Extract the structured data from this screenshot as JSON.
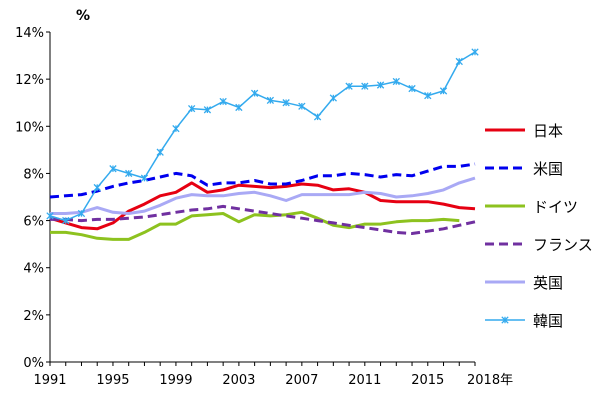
{
  "chart_data": {
    "type": "line",
    "ylabel": "%",
    "xlabel": "",
    "x_end_label": "2018年",
    "ylim": [
      0,
      14
    ],
    "xlim": [
      1991,
      2018
    ],
    "y_ticks": [
      0,
      2,
      4,
      6,
      8,
      10,
      12,
      14
    ],
    "y_tick_labels": [
      "0%",
      "2%",
      "4%",
      "6%",
      "8%",
      "10%",
      "12%",
      "14%"
    ],
    "x_ticks": [
      1991,
      1995,
      1999,
      2003,
      2007,
      2011,
      2015
    ],
    "x_tick_labels": [
      "1991",
      "1995",
      "1999",
      "2003",
      "2007",
      "2011",
      "2015"
    ],
    "grid": false,
    "legend_position": "right",
    "x": [
      1991,
      1992,
      1993,
      1994,
      1995,
      1996,
      1997,
      1998,
      1999,
      2000,
      2001,
      2002,
      2003,
      2004,
      2005,
      2006,
      2007,
      2008,
      2009,
      2010,
      2011,
      2012,
      2013,
      2014,
      2015,
      2016,
      2017,
      2018
    ],
    "series": [
      {
        "name": "日本",
        "color": "#e60012",
        "style": "solid",
        "marker": "none",
        "values": [
          6.1,
          5.9,
          5.7,
          5.65,
          5.9,
          6.4,
          6.7,
          7.05,
          7.2,
          7.6,
          7.2,
          7.3,
          7.5,
          7.45,
          7.4,
          7.45,
          7.55,
          7.5,
          7.3,
          7.35,
          7.2,
          6.85,
          6.8,
          6.8,
          6.8,
          6.7,
          6.55,
          6.5
        ]
      },
      {
        "name": "米国",
        "color": "#0000ee",
        "style": "dashed",
        "marker": "none",
        "values": [
          7.0,
          7.05,
          7.1,
          7.25,
          7.45,
          7.6,
          7.7,
          7.85,
          8.0,
          7.9,
          7.5,
          7.6,
          7.6,
          7.7,
          7.55,
          7.55,
          7.7,
          7.9,
          7.9,
          8.0,
          7.95,
          7.85,
          7.95,
          7.9,
          8.1,
          8.3,
          8.3,
          8.4
        ]
      },
      {
        "name": "ドイツ",
        "color": "#8dc21f",
        "style": "solid",
        "marker": "none",
        "values": [
          5.5,
          5.5,
          5.4,
          5.25,
          5.2,
          5.2,
          5.5,
          5.85,
          5.85,
          6.2,
          6.25,
          6.3,
          5.95,
          6.25,
          6.2,
          6.25,
          6.35,
          6.1,
          5.8,
          5.7,
          5.85,
          5.85,
          5.95,
          6.0,
          6.0,
          6.05,
          6.0,
          null
        ]
      },
      {
        "name": "フランス",
        "color": "#7030a0",
        "style": "dashed",
        "marker": "none",
        "values": [
          6.05,
          6.05,
          6.0,
          6.05,
          6.05,
          6.1,
          6.15,
          6.25,
          6.35,
          6.45,
          6.5,
          6.6,
          6.5,
          6.4,
          6.3,
          6.2,
          6.1,
          6.0,
          5.9,
          5.8,
          5.7,
          5.6,
          5.5,
          5.45,
          5.55,
          5.65,
          5.8,
          5.95
        ]
      },
      {
        "name": "英国",
        "color": "#a9a9f5",
        "style": "solid",
        "marker": "none",
        "values": [
          6.3,
          6.3,
          6.35,
          6.55,
          6.35,
          6.3,
          6.4,
          6.65,
          6.95,
          7.1,
          7.05,
          7.05,
          7.15,
          7.2,
          7.05,
          6.85,
          7.1,
          7.1,
          7.1,
          7.1,
          7.2,
          7.15,
          7.0,
          7.05,
          7.15,
          7.3,
          7.6,
          7.8
        ]
      },
      {
        "name": "韓国",
        "color": "#33aaee",
        "style": "solid",
        "marker": "x",
        "values": [
          6.2,
          6.0,
          6.3,
          7.4,
          8.2,
          8.0,
          7.8,
          8.9,
          9.9,
          10.75,
          10.7,
          11.05,
          10.8,
          11.4,
          11.1,
          11.0,
          10.85,
          10.4,
          11.2,
          11.7,
          11.7,
          11.75,
          11.9,
          11.6,
          11.3,
          11.5,
          12.75,
          13.15
        ]
      }
    ]
  }
}
